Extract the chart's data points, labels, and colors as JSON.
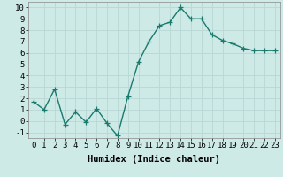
{
  "x": [
    0,
    1,
    2,
    3,
    4,
    5,
    6,
    7,
    8,
    9,
    10,
    11,
    12,
    13,
    14,
    15,
    16,
    17,
    18,
    19,
    20,
    21,
    22,
    23
  ],
  "y": [
    1.7,
    1.0,
    2.8,
    -0.3,
    0.8,
    -0.1,
    1.1,
    -0.2,
    -1.3,
    2.2,
    5.2,
    7.0,
    8.4,
    8.7,
    10.0,
    9.0,
    9.0,
    7.6,
    7.1,
    6.8,
    6.4,
    6.2,
    6.2,
    6.2
  ],
  "line_color": "#1a7a6e",
  "marker": "+",
  "markersize": 4,
  "linewidth": 1.0,
  "bg_color": "#ceeae7",
  "grid_color": "#b8d8d5",
  "xlabel": "Humidex (Indice chaleur)",
  "xlim": [
    -0.5,
    23.5
  ],
  "ylim": [
    -1.5,
    10.5
  ],
  "xticks": [
    0,
    1,
    2,
    3,
    4,
    5,
    6,
    7,
    8,
    9,
    10,
    11,
    12,
    13,
    14,
    15,
    16,
    17,
    18,
    19,
    20,
    21,
    22,
    23
  ],
  "yticks": [
    -1,
    0,
    1,
    2,
    3,
    4,
    5,
    6,
    7,
    8,
    9,
    10
  ],
  "tick_fontsize": 6.5,
  "xlabel_fontsize": 7.5
}
